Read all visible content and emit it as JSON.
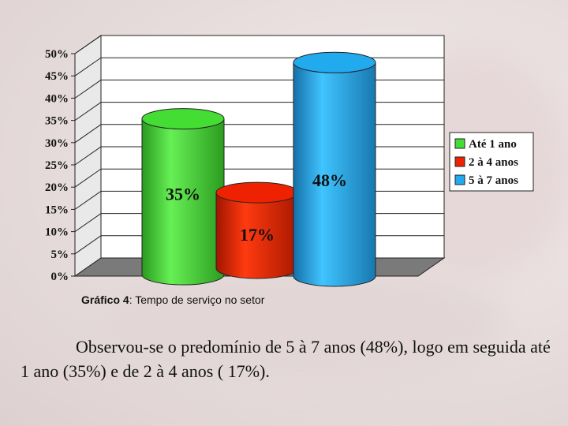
{
  "chart_data": {
    "type": "bar",
    "style": "3d-cylinder",
    "categories": [
      "Até 1 ano",
      "2 à 4 anos",
      "5 à 7 anos"
    ],
    "values": [
      35,
      17,
      48
    ],
    "data_labels": [
      "35%",
      "17%",
      "48%"
    ],
    "ylim": [
      0,
      50
    ],
    "yticks": [
      "0%",
      "5%",
      "10%",
      "15%",
      "20%",
      "25%",
      "30%",
      "35%",
      "40%",
      "45%",
      "50%"
    ],
    "grid": true,
    "legend": {
      "placement": "right",
      "entries": [
        {
          "label": "Até 1 ano",
          "color": "#44dd33"
        },
        {
          "label": "2 à 4 anos",
          "color": "#ee2200"
        },
        {
          "label": "5 à 7 anos",
          "color": "#22aaee"
        }
      ]
    },
    "colors": [
      "#44dd33",
      "#ee2200",
      "#22aaee"
    ]
  },
  "caption": {
    "prefix": "Gráfico 4",
    "text": ": Tempo de serviço no setor"
  },
  "body_text": "Observou-se o predomínio de 5 à 7 anos (48%), logo em seguida até 1 ano (35%) e de 2 à 4 anos ( 17%)."
}
